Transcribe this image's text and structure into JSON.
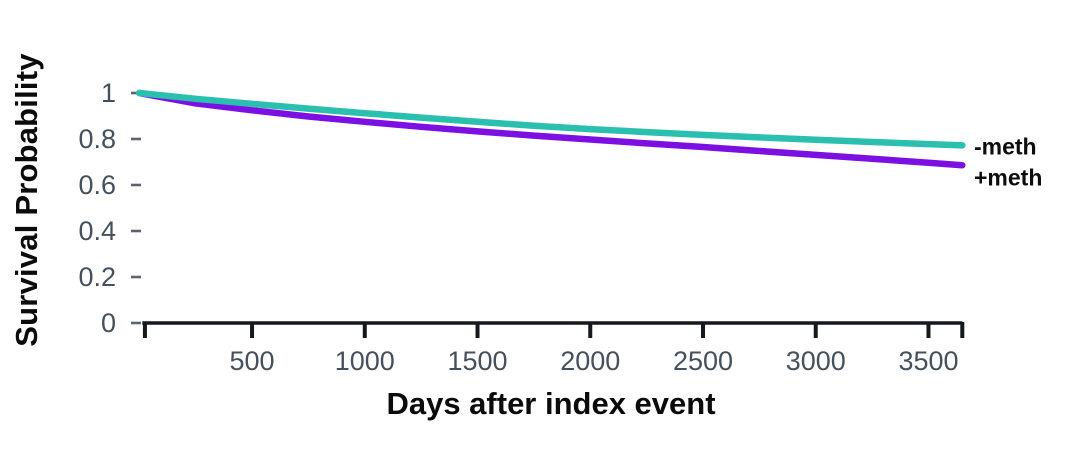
{
  "chart_data": {
    "type": "line",
    "title": "",
    "xlabel": "Days after index event",
    "ylabel": "Survival Probability",
    "xlim": [
      0,
      3650
    ],
    "ylim": [
      0,
      1
    ],
    "grid": false,
    "legend_position": "right of line ends",
    "colors": {
      "axis": "#15181c",
      "tick_label": "#46505c",
      "y_tick_mark": "#5a646f",
      "minus_meth_line": "#2abfae",
      "plus_meth_line": "#7c10e3"
    },
    "x_ticks": [
      {
        "value": 25,
        "label": ""
      },
      {
        "value": 500,
        "label": "500"
      },
      {
        "value": 1000,
        "label": "1000"
      },
      {
        "value": 1500,
        "label": "1500"
      },
      {
        "value": 2000,
        "label": "2000"
      },
      {
        "value": 2500,
        "label": "2500"
      },
      {
        "value": 3000,
        "label": "3000"
      },
      {
        "value": 3500,
        "label": "3500"
      },
      {
        "value": 3650,
        "label": ""
      }
    ],
    "y_ticks": [
      {
        "value": 0,
        "label": "0"
      },
      {
        "value": 0.2,
        "label": "0.2"
      },
      {
        "value": 0.4,
        "label": "0.4"
      },
      {
        "value": 0.6,
        "label": "0.6"
      },
      {
        "value": 0.8,
        "label": "0.8"
      },
      {
        "value": 1,
        "label": "1"
      }
    ],
    "x": [
      0,
      250,
      500,
      750,
      1000,
      1250,
      1500,
      1750,
      2000,
      2250,
      2500,
      2750,
      3000,
      3250,
      3500,
      3650
    ],
    "series": [
      {
        "name": "-meth",
        "color": "#2abfae",
        "values": [
          1.0,
          0.975,
          0.953,
          0.932,
          0.912,
          0.893,
          0.875,
          0.858,
          0.843,
          0.83,
          0.818,
          0.807,
          0.797,
          0.787,
          0.778,
          0.772
        ]
      },
      {
        "name": "+meth",
        "color": "#7c10e3",
        "values": [
          1.0,
          0.955,
          0.925,
          0.898,
          0.875,
          0.853,
          0.833,
          0.815,
          0.798,
          0.781,
          0.765,
          0.748,
          0.731,
          0.714,
          0.697,
          0.686
        ]
      }
    ]
  }
}
